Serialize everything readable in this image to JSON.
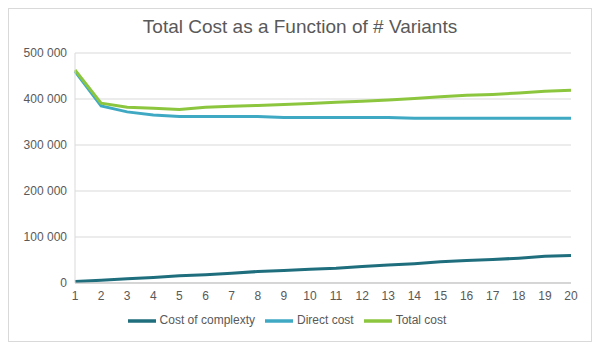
{
  "chart_data": {
    "type": "line",
    "title": "Total Cost as a Function of # Variants",
    "categories": [
      1,
      2,
      3,
      4,
      5,
      6,
      7,
      8,
      9,
      10,
      11,
      12,
      13,
      14,
      15,
      16,
      17,
      18,
      19,
      20
    ],
    "series": [
      {
        "name": "Cost of complexty",
        "color": "#1f6e7d",
        "values": [
          3000,
          6000,
          9000,
          12000,
          16000,
          18000,
          21000,
          25000,
          27000,
          30000,
          32000,
          36000,
          39000,
          42000,
          46000,
          49000,
          51000,
          54000,
          58000,
          60000
        ]
      },
      {
        "name": "Direct cost",
        "color": "#3fa9c4",
        "values": [
          460000,
          385000,
          372000,
          365000,
          362000,
          362000,
          362000,
          362000,
          360000,
          360000,
          360000,
          360000,
          360000,
          358000,
          358000,
          358000,
          358000,
          358000,
          358000,
          358000
        ]
      },
      {
        "name": "Total cost",
        "color": "#8cc63f",
        "values": [
          463000,
          391000,
          382000,
          380000,
          377000,
          382000,
          384000,
          386000,
          388000,
          390000,
          393000,
          395000,
          398000,
          401000,
          405000,
          408000,
          410000,
          413000,
          417000,
          419000
        ]
      }
    ],
    "ylim": [
      0,
      500000
    ],
    "yticks": [
      0,
      {
        "value": 100000,
        "label": "100 000"
      },
      {
        "value": 200000,
        "label": "200 000"
      },
      {
        "value": 300000,
        "label": "300 000"
      },
      {
        "value": 400000,
        "label": "400 000"
      },
      {
        "value": 500000,
        "label": "500 000"
      }
    ],
    "grid": true,
    "legend": "bottom"
  }
}
